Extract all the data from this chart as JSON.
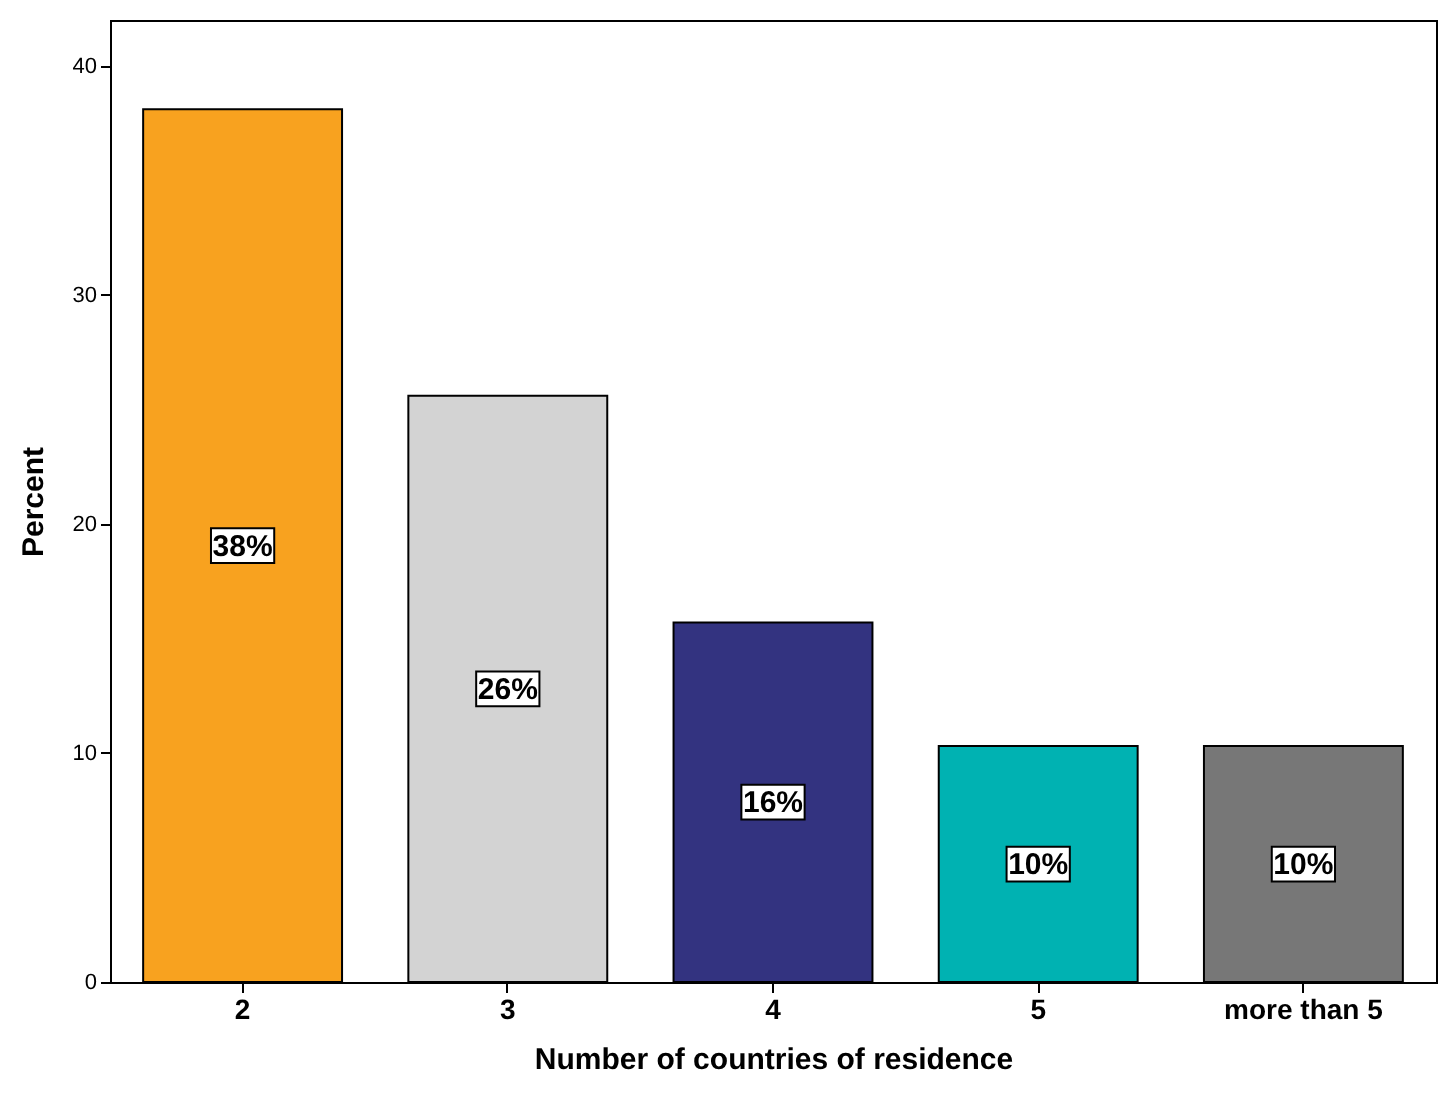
{
  "chart_data": {
    "type": "bar",
    "xlabel": "Number of countries of residence",
    "ylabel": "Percent",
    "categories": [
      "2",
      "3",
      "4",
      "5",
      "more than 5"
    ],
    "values": [
      38.1,
      25.6,
      15.7,
      10.3,
      10.3
    ],
    "colors": [
      "#f8a21f",
      "#d3d3d3",
      "#333380",
      "#00b2b2",
      "#777777"
    ],
    "value_labels": [
      "38%",
      "26%",
      "16%",
      "10%",
      "10%"
    ],
    "ylim": [
      0,
      42
    ],
    "yticks": [
      0,
      10,
      20,
      30,
      40
    ],
    "grid": false
  }
}
